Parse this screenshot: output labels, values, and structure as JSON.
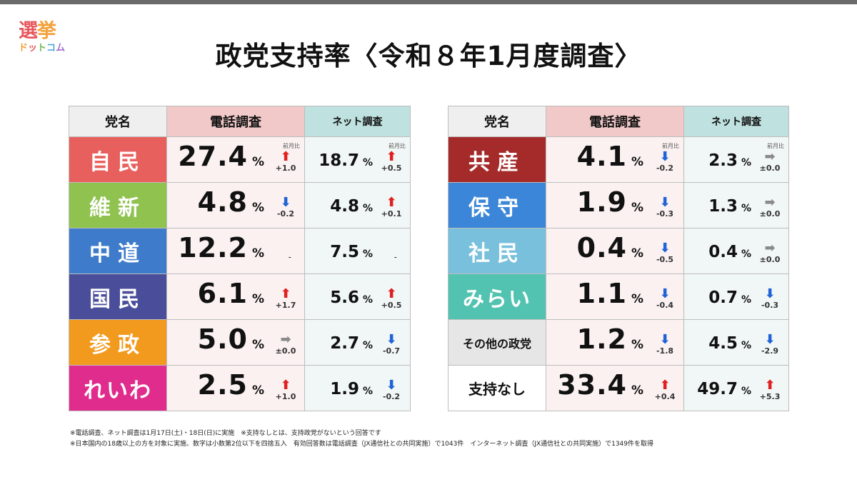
{
  "logo": {
    "line1": [
      "選",
      "挙"
    ],
    "line2": [
      "ド",
      "ッ",
      "ト",
      "コ",
      "ム"
    ]
  },
  "title": "政党支持率〈令和８年1月度調査〉",
  "headers": {
    "party": "党名",
    "tel": "電話調査",
    "net": "ネット調査"
  },
  "change_label": "前月比",
  "unit": "%",
  "colors": {
    "up": "#e02020",
    "down": "#1f63d6",
    "flat": "#8a8a8a"
  },
  "left_rows": [
    {
      "name": "自民",
      "color": "#e8605e",
      "tel": "27.4",
      "tel_dir": "up",
      "tel_chg": "+1.0",
      "net": "18.7",
      "net_dir": "up",
      "net_chg": "+0.5"
    },
    {
      "name": "維新",
      "color": "#8fc24f",
      "tel": "4.8",
      "tel_dir": "down",
      "tel_chg": "-0.2",
      "net": "4.8",
      "net_dir": "up",
      "net_chg": "+0.1"
    },
    {
      "name": "中道",
      "color": "#3e7ccb",
      "tel": "12.2",
      "tel_dir": "none",
      "tel_chg": "-",
      "net": "7.5",
      "net_dir": "none",
      "net_chg": "-"
    },
    {
      "name": "国民",
      "color": "#4a4e9a",
      "tel": "6.1",
      "tel_dir": "up",
      "tel_chg": "+1.7",
      "net": "5.6",
      "net_dir": "up",
      "net_chg": "+0.5"
    },
    {
      "name": "参政",
      "color": "#f29a1e",
      "tel": "5.0",
      "tel_dir": "flat",
      "tel_chg": "±0.0",
      "net": "2.7",
      "net_dir": "down",
      "net_chg": "-0.7"
    },
    {
      "name": "れいわ",
      "color": "#e02c8c",
      "tel": "2.5",
      "tel_dir": "up",
      "tel_chg": "+1.0",
      "net": "1.9",
      "net_dir": "down",
      "net_chg": "-0.2"
    }
  ],
  "right_rows": [
    {
      "name": "共産",
      "color": "#a52b2b",
      "tel": "4.1",
      "tel_dir": "down",
      "tel_chg": "-0.2",
      "net": "2.3",
      "net_dir": "flat",
      "net_chg": "±0.0"
    },
    {
      "name": "保守",
      "color": "#3b86d8",
      "tel": "1.9",
      "tel_dir": "down",
      "tel_chg": "-0.3",
      "net": "1.3",
      "net_dir": "flat",
      "net_chg": "±0.0"
    },
    {
      "name": "社民",
      "color": "#79c0dc",
      "tel": "0.4",
      "tel_dir": "down",
      "tel_chg": "-0.5",
      "net": "0.4",
      "net_dir": "flat",
      "net_chg": "±0.0"
    },
    {
      "name": "みらい",
      "color": "#52c3b0",
      "tel": "1.1",
      "tel_dir": "down",
      "tel_chg": "-0.4",
      "net": "0.7",
      "net_dir": "down",
      "net_chg": "-0.3"
    },
    {
      "name": "その他の政党",
      "color": "#e6e6e6",
      "tel": "1.2",
      "tel_dir": "down",
      "tel_chg": "-1.8",
      "net": "4.5",
      "net_dir": "down",
      "net_chg": "-2.9"
    },
    {
      "name": "支持なし",
      "color": "#ffffff",
      "tel": "33.4",
      "tel_dir": "up",
      "tel_chg": "+0.4",
      "net": "49.7",
      "net_dir": "up",
      "net_chg": "+5.3"
    }
  ],
  "notes": [
    "※電話調査、ネット調査は1月17日(土)・18日(日)に実施　※支持なしとは、支持政党がないという回答です",
    "※日本国内の18歳以上の方を対象に実施、数字は小数第2位以下を四捨五入　有効回答数は電話調査（JX通信社との共同実施）で1043件　インターネット調査（JX通信社との共同実施）で1349件を取得"
  ]
}
